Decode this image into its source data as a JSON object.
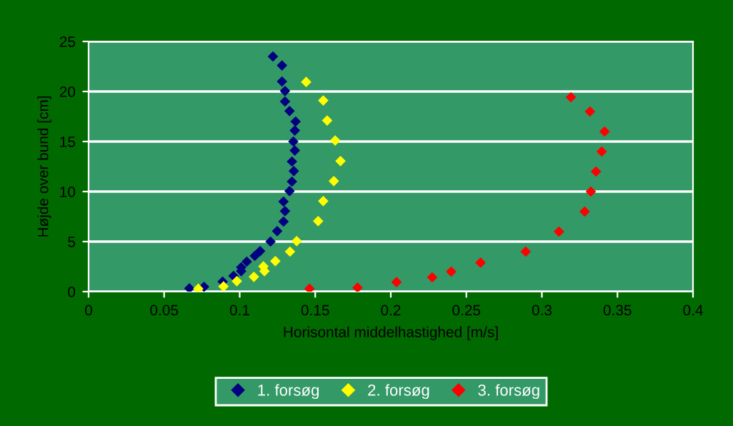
{
  "chart_data": {
    "type": "scatter",
    "xlabel": "Horisontal middelhastighed [m/s]",
    "ylabel": "Højde over bund [cm]",
    "xlim": [
      0,
      0.4
    ],
    "xticks": [
      0,
      0.05,
      0.1,
      0.15,
      0.2,
      0.25,
      0.3,
      0.35,
      0.4
    ],
    "ylim": [
      0,
      25
    ],
    "yticks": [
      0,
      5,
      10,
      15,
      20,
      25
    ],
    "grid": "y",
    "legend": "bottom",
    "marker": "diamond",
    "series": [
      {
        "name": "1. forsøg",
        "color": "#000080",
        "x": [
          0.122,
          0.128,
          0.128,
          0.13,
          0.13,
          0.133,
          0.137,
          0.1365,
          0.1355,
          0.1365,
          0.1346,
          0.1358,
          0.1346,
          0.133,
          0.129,
          0.13,
          0.129,
          0.1248,
          0.1204,
          0.1135,
          0.11,
          0.1047,
          0.101,
          0.101,
          0.0959,
          0.0887,
          0.0764,
          0.0667
        ],
        "values": [
          23.5,
          22.6,
          21.0,
          20.05,
          19.0,
          18.05,
          17.0,
          16.1,
          15.0,
          14.1,
          13.0,
          12.05,
          11.0,
          10.05,
          9.0,
          8.05,
          7.0,
          6.05,
          5.0,
          4.05,
          3.57,
          3.0,
          2.43,
          2.05,
          1.57,
          1.0,
          0.48,
          0.33
        ]
      },
      {
        "name": "2. forsøg",
        "color": "#ffff00",
        "x": [
          0.144,
          0.1553,
          0.1579,
          0.1632,
          0.1667,
          0.1623,
          0.1553,
          0.1519,
          0.1377,
          0.1333,
          0.1236,
          0.1157,
          0.1164,
          0.1094,
          0.0981,
          0.0893,
          0.0726
        ],
        "values": [
          20.95,
          19.1,
          17.1,
          15.1,
          13.05,
          11.05,
          9.05,
          7.05,
          5.05,
          4.0,
          3.05,
          2.52,
          2.05,
          1.48,
          1.05,
          0.52,
          0.29
        ]
      },
      {
        "name": "3. forsøg",
        "color": "#ff0000",
        "x": [
          0.1462,
          0.178,
          0.2038,
          0.2274,
          0.24,
          0.2594,
          0.2893,
          0.3113,
          0.3283,
          0.3324,
          0.3358,
          0.3396,
          0.3415,
          0.3318,
          0.3192
        ],
        "values": [
          0.29,
          0.4,
          0.95,
          1.43,
          2.0,
          2.9,
          4.0,
          6.0,
          8.0,
          10.0,
          12.0,
          14.0,
          16.0,
          18.0,
          19.43
        ]
      }
    ]
  }
}
